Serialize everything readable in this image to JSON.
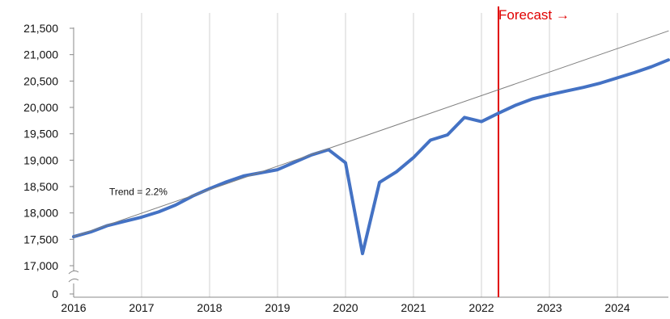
{
  "chart_data": {
    "type": "line",
    "y_axis": {
      "ylim": [
        17000,
        21500
      ],
      "ticks": [
        17000,
        17500,
        18000,
        18500,
        19000,
        19500,
        20000,
        20500,
        21000,
        21500
      ],
      "tick_labels": [
        "17,000",
        "17,500",
        "18,000",
        "18,500",
        "19,000",
        "19,500",
        "20,000",
        "20,500",
        "21,000",
        "21,500"
      ],
      "broken_axis": true,
      "zero_label": "0"
    },
    "x_axis": {
      "xlim": [
        2016.0,
        2024.75
      ],
      "ticks": [
        2016,
        2017,
        2018,
        2019,
        2020,
        2021,
        2022,
        2023,
        2024
      ],
      "tick_labels": [
        "2016",
        "2017",
        "2018",
        "2019",
        "2020",
        "2021",
        "2022",
        "2023",
        "2024"
      ]
    },
    "grid": "vertical",
    "series": [
      {
        "role": "actual_and_forecast",
        "color": "#4472c4",
        "x": [
          2016.0,
          2016.25,
          2016.5,
          2016.75,
          2017.0,
          2017.25,
          2017.5,
          2017.75,
          2018.0,
          2018.25,
          2018.5,
          2018.75,
          2019.0,
          2019.25,
          2019.5,
          2019.75,
          2020.0,
          2020.25,
          2020.5,
          2020.75,
          2021.0,
          2021.25,
          2021.5,
          2021.75,
          2022.0,
          2022.25,
          2022.5,
          2022.75,
          2023.0,
          2023.25,
          2023.5,
          2023.75,
          2024.0,
          2024.25,
          2024.5,
          2024.75
        ],
        "y": [
          17550,
          17640,
          17760,
          17840,
          17920,
          18020,
          18150,
          18320,
          18460,
          18590,
          18700,
          18760,
          18820,
          18960,
          19100,
          19200,
          18950,
          17230,
          18580,
          18780,
          19050,
          19380,
          19480,
          19810,
          19730,
          19890,
          20040,
          20160,
          20240,
          20310,
          20380,
          20460,
          20560,
          20660,
          20770,
          20900
        ]
      },
      {
        "role": "trend",
        "color": "#7f7f7f",
        "x": [
          2016.0,
          2024.75
        ],
        "y": [
          17550,
          21450
        ]
      }
    ],
    "annotations": [
      {
        "text": "Trend = 2.2%",
        "x": 2017.0,
        "y": 18400
      },
      {
        "text": "Forecast →",
        "x": 2022.25,
        "color": "#e00000"
      }
    ],
    "forecast_start": 2022.25
  }
}
